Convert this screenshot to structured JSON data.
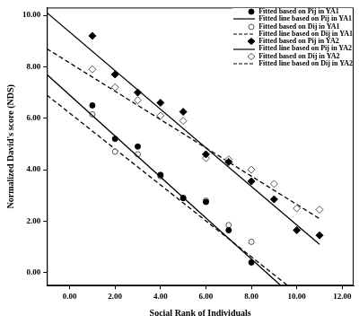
{
  "chart_data": {
    "type": "scatter",
    "x_label": "Social Rank of Individuals",
    "y_label": "Normalized David's score (NDS)",
    "xlim": [
      -1,
      12.5
    ],
    "ylim": [
      -0.5,
      10.3
    ],
    "xticks": [
      {
        "value": 0,
        "label": "0.00"
      },
      {
        "value": 2,
        "label": "2.00"
      },
      {
        "value": 4,
        "label": "4.00"
      },
      {
        "value": 6,
        "label": "6.00"
      },
      {
        "value": 8,
        "label": "8.00"
      },
      {
        "value": 10,
        "label": "10.00"
      },
      {
        "value": 12,
        "label": "12.00"
      }
    ],
    "yticks": [
      {
        "value": 0,
        "label": "0.00"
      },
      {
        "value": 2,
        "label": "2.00"
      },
      {
        "value": 4,
        "label": "4.00"
      },
      {
        "value": 6,
        "label": "6.00"
      },
      {
        "value": 8,
        "label": "8.00"
      },
      {
        "value": 10,
        "label": "10.00"
      }
    ],
    "grid": false,
    "legend": "upper right",
    "series": [
      {
        "name": "Fitted based on Pij in YA1",
        "type": "scatter",
        "marker": "circle",
        "color": "#000000",
        "x": [
          1,
          2,
          3,
          4,
          5,
          6,
          7,
          8
        ],
        "values": [
          6.5,
          5.2,
          4.9,
          3.8,
          2.9,
          2.75,
          1.65,
          0.4
        ]
      },
      {
        "name": "Fitted line based on Pij in YA1",
        "type": "line",
        "line_style": "solid",
        "color": "#000000",
        "x": [
          -1,
          9.3
        ],
        "values": [
          7.7,
          -0.5
        ]
      },
      {
        "name": "Fitted based on Dij in YA1",
        "type": "scatter",
        "marker": "circle-open",
        "color": "#555555",
        "x": [
          1,
          2,
          3,
          4,
          5,
          6,
          7,
          8
        ],
        "values": [
          6.15,
          4.7,
          4.6,
          3.75,
          2.9,
          2.8,
          1.85,
          1.2
        ]
      },
      {
        "name": "Fitted line based on Dij in YA1",
        "type": "line",
        "line_style": "dashed",
        "color": "#000000",
        "x": [
          -1,
          9.6
        ],
        "values": [
          6.9,
          -0.5
        ]
      },
      {
        "name": "Fitted based on Pij in YA2",
        "type": "scatter",
        "marker": "diamond",
        "color": "#000000",
        "x": [
          1,
          2,
          3,
          4,
          5,
          6,
          7,
          8,
          9,
          10,
          11
        ],
        "values": [
          9.2,
          7.7,
          7.0,
          6.6,
          6.25,
          4.6,
          4.3,
          3.55,
          2.85,
          1.65,
          1.45
        ]
      },
      {
        "name": "Fitted line based on Pij in YA2",
        "type": "line",
        "line_style": "solid",
        "color": "#000000",
        "x": [
          -1,
          11
        ],
        "values": [
          10.1,
          1.1
        ]
      },
      {
        "name": "Fitted based on Dij in YA2",
        "type": "scatter",
        "marker": "diamond-open",
        "color": "#555555",
        "x": [
          1,
          2,
          3,
          4,
          5,
          6,
          7,
          8,
          9,
          10,
          11
        ],
        "values": [
          7.9,
          7.2,
          6.7,
          6.1,
          5.9,
          4.45,
          4.4,
          4.0,
          3.45,
          2.5,
          2.45
        ]
      },
      {
        "name": "Fitted line based on Dij in YA2",
        "type": "line",
        "line_style": "dashed",
        "color": "#000000",
        "x": [
          -1,
          11
        ],
        "values": [
          8.7,
          2.1
        ]
      }
    ]
  }
}
